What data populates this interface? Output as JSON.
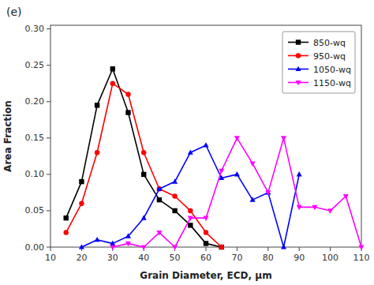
{
  "chart_data": {
    "type": "line",
    "title": "(e)",
    "x_label": "Grain Diameter, ECD, μm",
    "y_label": "Area Fraction",
    "xlim": [
      10,
      110
    ],
    "ylim": [
      0.0,
      0.305
    ],
    "xticks": [
      10,
      20,
      30,
      40,
      50,
      60,
      70,
      80,
      90,
      100,
      110
    ],
    "yticks": [
      {
        "value": 0.0,
        "label": "0.00"
      },
      {
        "value": 0.05,
        "label": "0.05"
      },
      {
        "value": 0.1,
        "label": "0.10"
      },
      {
        "value": 0.15,
        "label": "0.15"
      },
      {
        "value": 0.2,
        "label": "0.20"
      },
      {
        "value": 0.25,
        "label": "0.25"
      },
      {
        "value": 0.3,
        "label": "0.30"
      }
    ],
    "grid": false,
    "legend": "upper right",
    "series": [
      {
        "name": "850-wq",
        "color": "#000000",
        "marker": "square",
        "x": [
          15,
          20,
          25,
          30,
          35,
          40,
          45,
          50,
          55,
          60,
          65
        ],
        "values": [
          0.04,
          0.09,
          0.195,
          0.245,
          0.185,
          0.1,
          0.065,
          0.05,
          0.03,
          0.005,
          0.0
        ]
      },
      {
        "name": "950-wq",
        "color": "#ff0000",
        "marker": "circle",
        "x": [
          15,
          20,
          25,
          30,
          35,
          40,
          45,
          50,
          55,
          60,
          65
        ],
        "values": [
          0.02,
          0.06,
          0.13,
          0.225,
          0.21,
          0.13,
          0.08,
          0.07,
          0.05,
          0.02,
          0.0
        ]
      },
      {
        "name": "1050-wq",
        "color": "#0000ff",
        "marker": "triangle-up",
        "x": [
          20,
          25,
          30,
          35,
          40,
          45,
          50,
          55,
          60,
          65,
          70,
          75,
          80,
          85,
          90
        ],
        "values": [
          0.0,
          0.01,
          0.005,
          0.015,
          0.04,
          0.08,
          0.09,
          0.13,
          0.14,
          0.095,
          0.1,
          0.065,
          0.075,
          0.0,
          0.1
        ]
      },
      {
        "name": "1150-wq",
        "color": "#ff00ff",
        "marker": "triangle-down",
        "x": [
          30,
          35,
          40,
          45,
          50,
          55,
          60,
          65,
          70,
          75,
          80,
          85,
          90,
          95,
          100,
          105,
          110
        ],
        "values": [
          0.0,
          0.005,
          0.0,
          0.02,
          0.0,
          0.04,
          0.04,
          0.105,
          0.15,
          0.115,
          0.075,
          0.15,
          0.055,
          0.055,
          0.05,
          0.07,
          0.0
        ]
      }
    ]
  }
}
